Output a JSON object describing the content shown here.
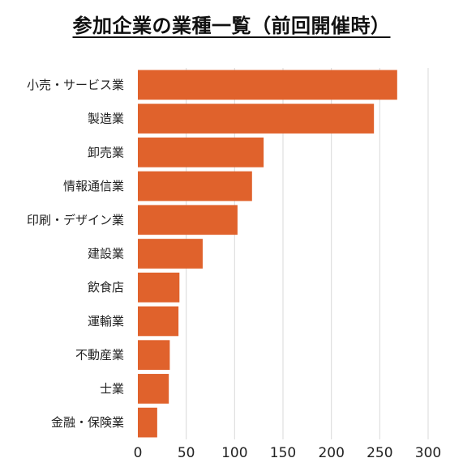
{
  "chart_data": {
    "type": "bar",
    "orientation": "horizontal",
    "title": "参加企業の業種一覧（前回開催時）",
    "categories": [
      "小売・サービス業",
      "製造業",
      "卸売業",
      "情報通信業",
      "印刷・デザイン業",
      "建設業",
      "飲食店",
      "運輸業",
      "不動産業",
      "士業",
      "金融・保険業"
    ],
    "values": [
      268,
      244,
      130,
      118,
      103,
      67,
      43,
      42,
      33,
      32,
      20
    ],
    "xlabel": "",
    "ylabel": "",
    "xlim": [
      0,
      300
    ],
    "xticks": [
      0,
      50,
      100,
      150,
      200,
      250,
      300
    ],
    "grid": "vertical",
    "legend": "none",
    "bar_color": "#E0622C"
  }
}
